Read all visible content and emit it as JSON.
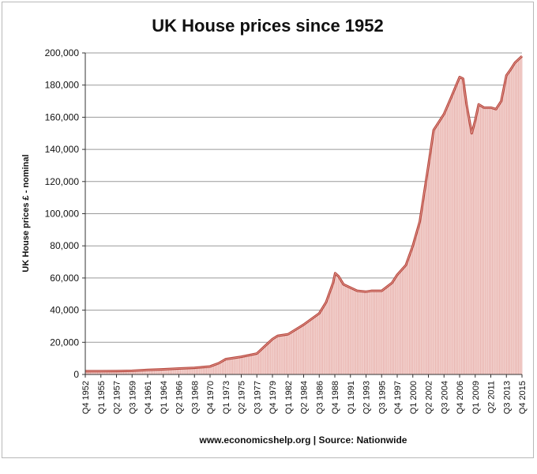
{
  "chart_data": {
    "type": "area",
    "title": "UK House prices since 1952",
    "ylabel": "UK House prices £ - nominal",
    "source": "www.economicshelp.org | Source: Nationwide",
    "ylim": [
      0,
      200000
    ],
    "yticks": [
      0,
      20000,
      40000,
      60000,
      80000,
      100000,
      120000,
      140000,
      160000,
      180000,
      200000
    ],
    "ytick_labels": [
      "0",
      "20,000",
      "40,000",
      "60,000",
      "80,000",
      "100,000",
      "120,000",
      "140,000",
      "160,000",
      "180,000",
      "200,000"
    ],
    "xlim": [
      1952.75,
      2015.75
    ],
    "xtick_labels": [
      "Q4 1952",
      "Q1 1955",
      "Q2 1957",
      "Q3 1959",
      "Q4 1961",
      "Q1 1964",
      "Q2 1966",
      "Q3 1968",
      "Q4 1970",
      "Q1 1973",
      "Q2 1975",
      "Q3 1977",
      "Q4 1979",
      "Q1 1982",
      "Q2 1984",
      "Q3 1986",
      "Q4 1988",
      "Q1 1991",
      "Q2 1993",
      "Q3 1995",
      "Q4 1997",
      "Q1 2000",
      "Q2 2002",
      "Q3 2004",
      "Q4 2006",
      "Q1 2009",
      "Q2 2011",
      "Q3 2013",
      "Q4 2015"
    ],
    "grid": true,
    "legend": "none",
    "line_color": "#b5443a",
    "fill_color": "#f3d3d0",
    "series": [
      {
        "x": [
          1952.75,
          1955,
          1957.25,
          1959.5,
          1961.75,
          1964,
          1966.25,
          1968.5,
          1970.75,
          1972,
          1973,
          1975.25,
          1977.5,
          1978.5,
          1979.75,
          1980.5,
          1982,
          1984.25,
          1986.5,
          1987.5,
          1988.5,
          1988.8,
          1989.3,
          1990,
          1991,
          1992,
          1993.25,
          1994,
          1995.5,
          1997,
          1997.75,
          1999,
          2000,
          2001,
          2002.25,
          2003,
          2003.75,
          2004.5,
          2005.5,
          2006.75,
          2007.25,
          2007.75,
          2008.5,
          2009,
          2009.5,
          2010.25,
          2011.25,
          2012,
          2012.75,
          2013.5,
          2014,
          2014.75,
          2015.75
        ],
        "y": [
          2000,
          2000,
          2100,
          2300,
          2800,
          3200,
          3700,
          4100,
          5000,
          7000,
          9500,
          11000,
          13000,
          17000,
          22000,
          24000,
          25000,
          31000,
          38000,
          45000,
          57000,
          63000,
          61000,
          56000,
          54000,
          52000,
          51500,
          52000,
          52000,
          57000,
          62000,
          68000,
          80000,
          95000,
          130000,
          152000,
          157000,
          162000,
          172000,
          185000,
          184000,
          168000,
          150000,
          158000,
          168000,
          166000,
          166000,
          165000,
          170000,
          186000,
          189000,
          194000,
          198000
        ]
      }
    ]
  }
}
